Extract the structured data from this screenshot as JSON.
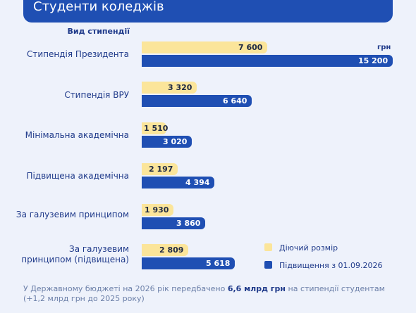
{
  "header": {
    "title": "Студенти коледжів"
  },
  "chart_data": {
    "type": "bar",
    "orientation": "horizontal",
    "category_header": "Вид стипендії",
    "unit": "грн",
    "categories": [
      "Стипендія Президента",
      "Стипендія ВРУ",
      "Мінімальна академічна",
      "Підвищена академічна",
      "За галузевим принципом",
      "За галузевим принципом (підвищена)"
    ],
    "series": [
      {
        "name": "Діючий розмір",
        "color": "#fbe59a",
        "values": [
          7600,
          3320,
          1510,
          2197,
          1930,
          2809
        ],
        "labels": [
          "7 600",
          "3 320",
          "1 510",
          "2 197",
          "1 930",
          "2 809"
        ]
      },
      {
        "name": "Підвищення з 01.09.2026",
        "color": "#1f4fb3",
        "values": [
          15200,
          6640,
          3020,
          4394,
          3860,
          5618
        ],
        "labels": [
          "15 200",
          "6 640",
          "3 020",
          "4 394",
          "3 860",
          "5 618"
        ]
      }
    ],
    "legend_position": "bottom-right",
    "grid": false
  },
  "footnote": {
    "before": "У Державному бюджеті на 2026 рік передбачено ",
    "highlight": "6,6 млрд грн",
    "after": " на стипендії студентам (+1,2 млрд грн до 2025 року)"
  }
}
